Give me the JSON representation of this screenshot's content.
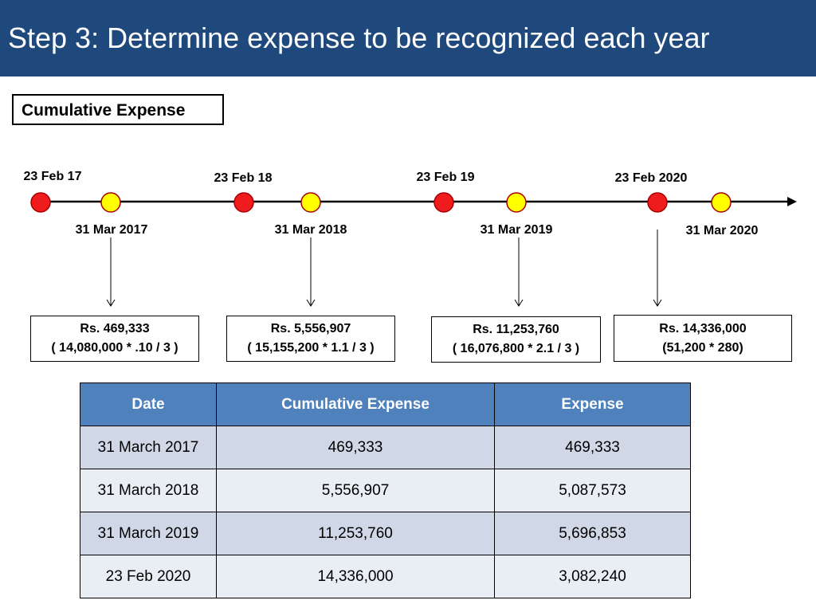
{
  "header": {
    "title": "Step 3: Determine expense to be recognized each year"
  },
  "section_label": "Cumulative Expense",
  "timeline": {
    "grant_dates": [
      "23 Feb 17",
      "23 Feb 18",
      "23 Feb 19",
      "23 Feb 2020"
    ],
    "year_end_dates": [
      "31 Mar 2017",
      "31 Mar 2018",
      "31 Mar 2019",
      "31 Mar 2020"
    ],
    "colors": {
      "grant_marker": "#ee1c1c",
      "year_end_marker": "#ffff00",
      "line": "#000000"
    }
  },
  "boxes": [
    {
      "line1": "Rs. 469,333",
      "line2": "( 14,080,000 * .10 / 3 )"
    },
    {
      "line1": "Rs. 5,556,907",
      "line2": "( 15,155,200 * 1.1 / 3 )"
    },
    {
      "line1": "Rs. 11,253,760",
      "line2": "( 16,076,800 * 2.1 / 3 )"
    },
    {
      "line1": "Rs. 14,336,000",
      "line2": "(51,200 * 280)"
    }
  ],
  "table": {
    "headers": [
      "Date",
      "Cumulative Expense",
      "Expense"
    ],
    "rows": [
      [
        "31 March 2017",
        "469,333",
        "469,333"
      ],
      [
        "31 March 2018",
        "5,556,907",
        "5,087,573"
      ],
      [
        "31 March 2019",
        "11,253,760",
        "5,696,853"
      ],
      [
        "23 Feb 2020",
        "14,336,000",
        "3,082,240"
      ]
    ]
  }
}
